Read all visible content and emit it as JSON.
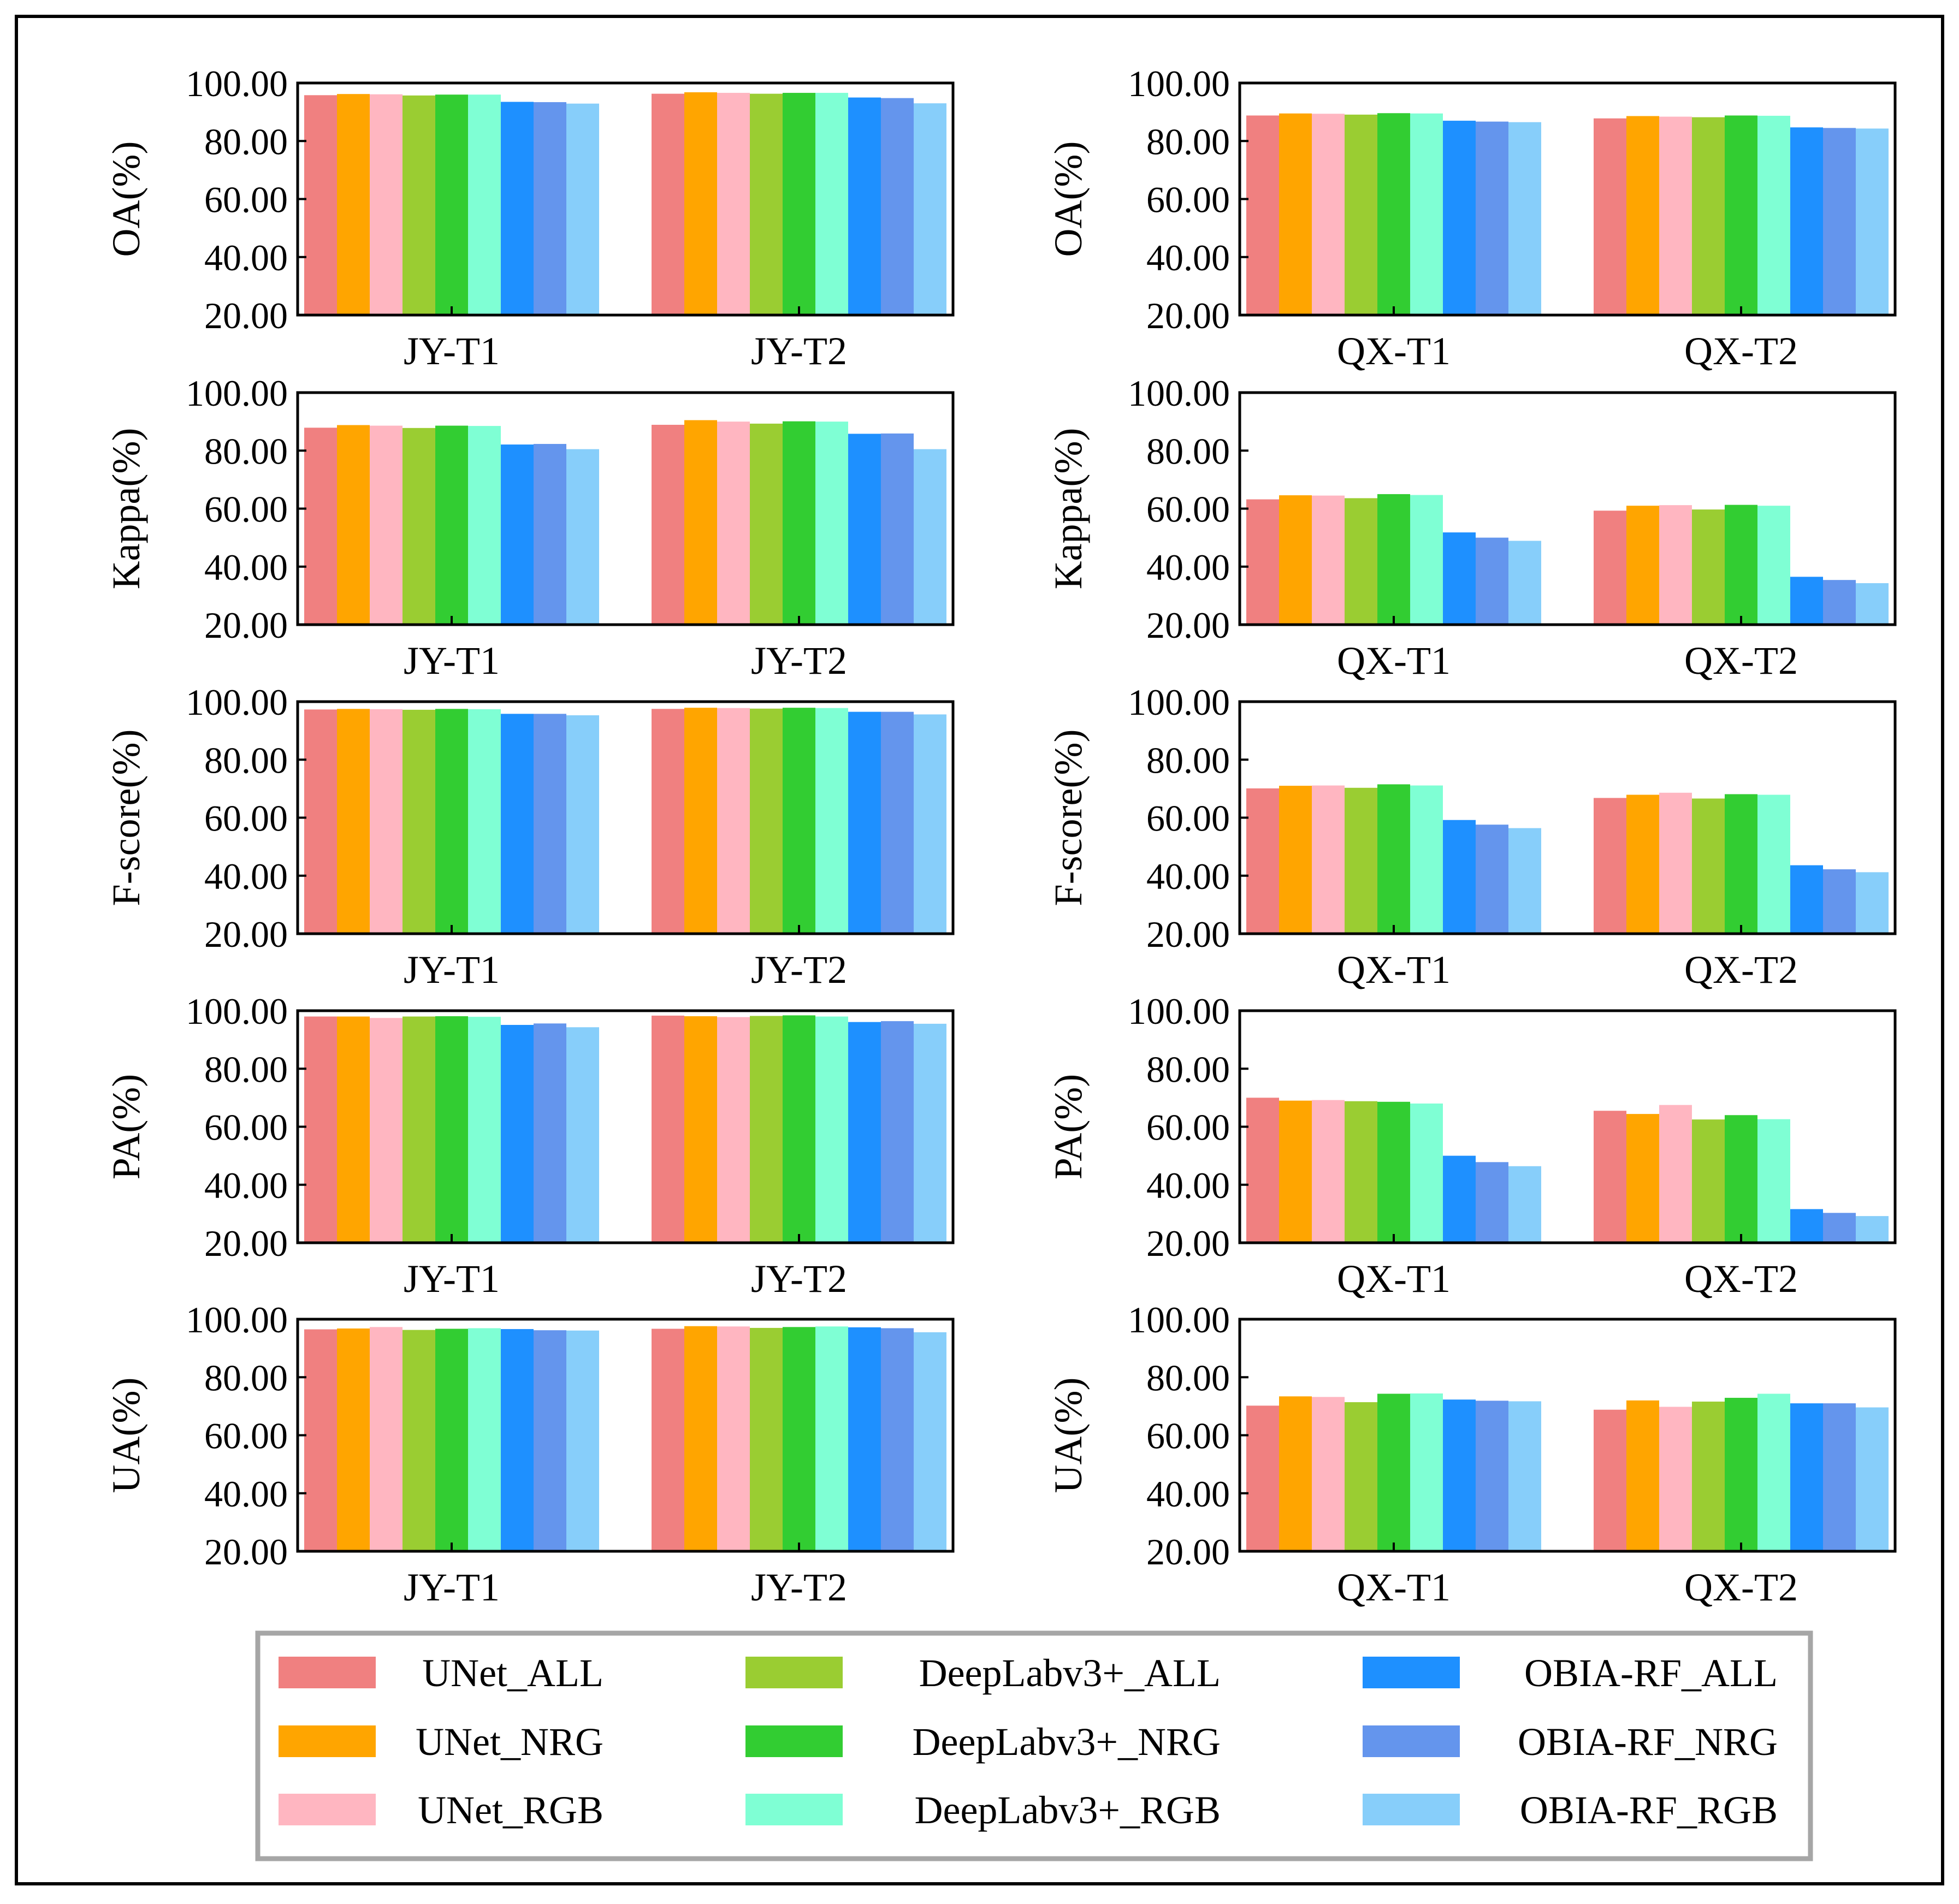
{
  "legend": {
    "items": [
      {
        "label": "UNet_ALL",
        "color": "#F08080"
      },
      {
        "label": "UNet_NRG",
        "color": "#FFA500"
      },
      {
        "label": "UNet_RGB",
        "color": "#FFB6C1"
      },
      {
        "label": "DeepLabv3+_ALL",
        "color": "#9ACD32"
      },
      {
        "label": "DeepLabv3+_NRG",
        "color": "#32CD32"
      },
      {
        "label": "DeepLabv3+_RGB",
        "color": "#7FFFD4"
      },
      {
        "label": "OBIA-RF_ALL",
        "color": "#1E90FF"
      },
      {
        "label": "OBIA-RF_NRG",
        "color": "#6495ED"
      },
      {
        "label": "OBIA-RF_RGB",
        "color": "#87CEFA"
      }
    ]
  },
  "chart_data": [
    {
      "type": "bar",
      "ylabel": "OA(%)",
      "categories": [
        "JY-T1",
        "JY-T2"
      ],
      "ylim": [
        20,
        100
      ],
      "yticks": [
        "20.00",
        "40.00",
        "60.00",
        "80.00",
        "100.00"
      ],
      "values": [
        [
          95.8,
          96.2,
          96.1,
          95.7,
          96.0,
          96.0,
          93.5,
          93.4,
          92.9
        ],
        [
          96.3,
          96.8,
          96.6,
          96.3,
          96.6,
          96.6,
          95.0,
          94.8,
          93.0
        ]
      ]
    },
    {
      "type": "bar",
      "ylabel": "OA(%)",
      "categories": [
        "QX-T1",
        "QX-T2"
      ],
      "ylim": [
        20,
        100
      ],
      "yticks": [
        "20.00",
        "40.00",
        "60.00",
        "80.00",
        "100.00"
      ],
      "values": [
        [
          88.8,
          89.5,
          89.4,
          89.1,
          89.6,
          89.5,
          87.0,
          86.7,
          86.5
        ],
        [
          87.8,
          88.6,
          88.4,
          88.2,
          88.8,
          88.7,
          84.7,
          84.5,
          84.3
        ]
      ]
    },
    {
      "type": "bar",
      "ylabel": "Kappa(%)",
      "categories": [
        "JY-T1",
        "JY-T2"
      ],
      "ylim": [
        20,
        100
      ],
      "yticks": [
        "20.00",
        "40.00",
        "60.00",
        "80.00",
        "100.00"
      ],
      "values": [
        [
          87.9,
          88.8,
          88.6,
          87.8,
          88.6,
          88.5,
          82.1,
          82.3,
          80.5
        ],
        [
          88.9,
          90.5,
          90.0,
          89.3,
          90.1,
          90.0,
          85.8,
          85.9,
          80.5
        ]
      ]
    },
    {
      "type": "bar",
      "ylabel": "Kappa(%)",
      "categories": [
        "QX-T1",
        "QX-T2"
      ],
      "ylim": [
        20,
        100
      ],
      "yticks": [
        "20.00",
        "40.00",
        "60.00",
        "80.00",
        "100.00"
      ],
      "values": [
        [
          63.2,
          64.6,
          64.5,
          63.6,
          65.0,
          64.7,
          51.8,
          50.0,
          48.9
        ],
        [
          59.3,
          61.0,
          61.2,
          59.7,
          61.3,
          61.0,
          36.5,
          35.4,
          34.3
        ]
      ]
    },
    {
      "type": "bar",
      "ylabel": "F-score(%)",
      "categories": [
        "JY-T1",
        "JY-T2"
      ],
      "ylim": [
        20,
        100
      ],
      "yticks": [
        "20.00",
        "40.00",
        "60.00",
        "80.00",
        "100.00"
      ],
      "values": [
        [
          97.3,
          97.5,
          97.4,
          97.2,
          97.5,
          97.4,
          95.8,
          95.8,
          95.3
        ],
        [
          97.5,
          97.9,
          97.8,
          97.6,
          97.9,
          97.8,
          96.5,
          96.5,
          95.6
        ]
      ]
    },
    {
      "type": "bar",
      "ylabel": "F-score(%)",
      "categories": [
        "QX-T1",
        "QX-T2"
      ],
      "ylim": [
        20,
        100
      ],
      "yticks": [
        "20.00",
        "40.00",
        "60.00",
        "80.00",
        "100.00"
      ],
      "values": [
        [
          70.1,
          71.0,
          71.1,
          70.3,
          71.5,
          71.1,
          59.2,
          57.6,
          56.4
        ],
        [
          66.8,
          67.9,
          68.6,
          66.6,
          68.1,
          67.9,
          43.6,
          42.2,
          41.2
        ]
      ]
    },
    {
      "type": "bar",
      "ylabel": "PA(%)",
      "categories": [
        "JY-T1",
        "JY-T2"
      ],
      "ylim": [
        20,
        100
      ],
      "yticks": [
        "20.00",
        "40.00",
        "60.00",
        "80.00",
        "100.00"
      ],
      "values": [
        [
          98.0,
          98.0,
          97.5,
          98.0,
          98.1,
          97.9,
          95.1,
          95.6,
          94.3
        ],
        [
          98.3,
          98.1,
          97.8,
          98.2,
          98.4,
          98.0,
          96.1,
          96.4,
          95.5
        ]
      ]
    },
    {
      "type": "bar",
      "ylabel": "PA(%)",
      "categories": [
        "QX-T1",
        "QX-T2"
      ],
      "ylim": [
        20,
        100
      ],
      "yticks": [
        "20.00",
        "40.00",
        "60.00",
        "80.00",
        "100.00"
      ],
      "values": [
        [
          70.0,
          69.0,
          69.2,
          68.8,
          68.6,
          68.0,
          50.0,
          47.8,
          46.4
        ],
        [
          65.5,
          64.4,
          67.5,
          62.5,
          64.0,
          62.6,
          31.6,
          30.3,
          29.2
        ]
      ]
    },
    {
      "type": "bar",
      "ylabel": "UA(%)",
      "categories": [
        "JY-T1",
        "JY-T2"
      ],
      "ylim": [
        20,
        100
      ],
      "yticks": [
        "20.00",
        "40.00",
        "60.00",
        "80.00",
        "100.00"
      ],
      "values": [
        [
          96.5,
          96.8,
          97.3,
          96.3,
          96.7,
          96.9,
          96.6,
          96.2,
          96.1
        ],
        [
          96.7,
          97.6,
          97.5,
          97.0,
          97.3,
          97.5,
          97.2,
          96.9,
          95.5
        ]
      ]
    },
    {
      "type": "bar",
      "ylabel": "UA(%)",
      "categories": [
        "QX-T1",
        "QX-T2"
      ],
      "ylim": [
        20,
        100
      ],
      "yticks": [
        "20.00",
        "40.00",
        "60.00",
        "80.00",
        "100.00"
      ],
      "values": [
        [
          70.2,
          73.4,
          73.2,
          71.4,
          74.3,
          74.4,
          72.3,
          71.9,
          71.7
        ],
        [
          68.8,
          72.0,
          69.8,
          71.6,
          72.9,
          74.3,
          71.0,
          71.0,
          69.6
        ]
      ]
    }
  ]
}
